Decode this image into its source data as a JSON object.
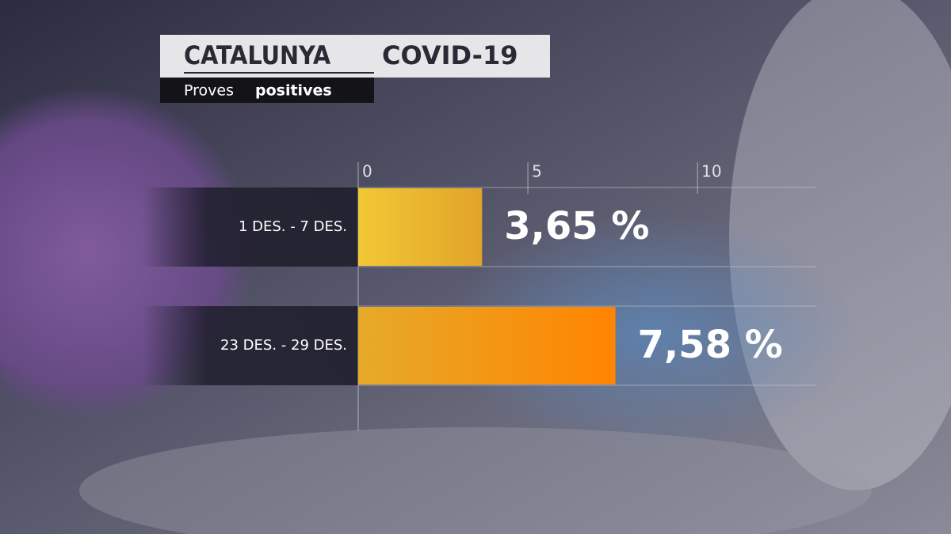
{
  "chart_data": {
    "type": "hbar",
    "title_parts": [
      "CATALUNYA",
      "COVID-19"
    ],
    "subtitle_parts": [
      "Proves",
      "positives"
    ],
    "categories": [
      "1 DES. - 7 DES.",
      "23 DES. - 29 DES."
    ],
    "values": [
      3.65,
      7.58
    ],
    "value_labels": [
      "3,65 %",
      "7,58 %"
    ],
    "color_stops": [
      [
        "#f2c834",
        "#e1a42a"
      ],
      [
        "#e6aa2a",
        "#ff8400"
      ]
    ],
    "xlim": [
      0,
      13.5
    ],
    "xticks": [
      0,
      5,
      10
    ],
    "grid": true
  }
}
